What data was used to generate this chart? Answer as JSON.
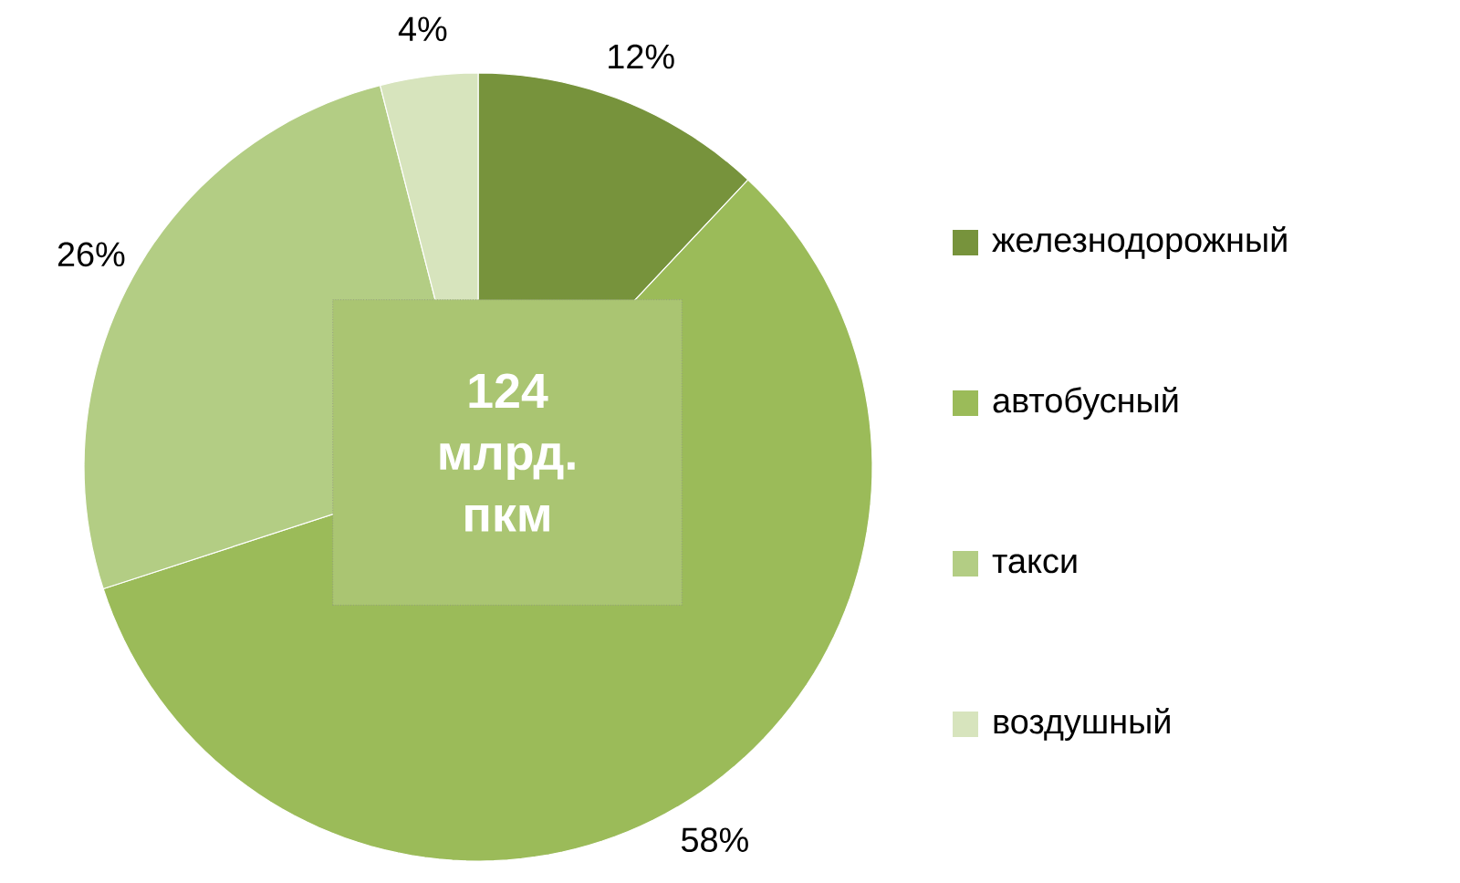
{
  "chart_data": {
    "type": "pie",
    "categories": [
      "железнодорожный",
      "автобусный",
      "такси",
      "воздушный"
    ],
    "values": [
      12,
      58,
      26,
      4
    ],
    "value_labels": [
      "12%",
      "58%",
      "26%",
      "4%"
    ],
    "colors": [
      "#77933c",
      "#9bbb59",
      "#b3cd84",
      "#d7e4bd"
    ],
    "annotations": [
      "124 млрд. пкм"
    ],
    "legend": "right"
  }
}
